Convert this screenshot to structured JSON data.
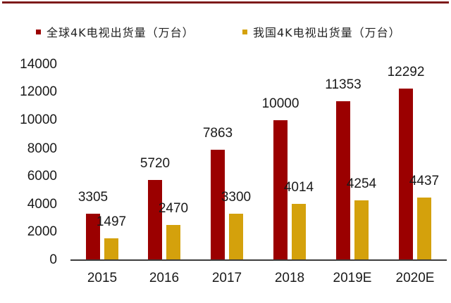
{
  "chart_data": {
    "type": "bar",
    "title": "",
    "xlabel": "",
    "ylabel": "",
    "categories": [
      "2015",
      "2016",
      "2017",
      "2018",
      "2019E",
      "2020E"
    ],
    "series": [
      {
        "name": "全球4K电视出货量（万台）",
        "color": "#9b0000",
        "values": [
          3305,
          5720,
          7863,
          10000,
          11353,
          12292
        ]
      },
      {
        "name": "我国4K电视出货量（万台）",
        "color": "#d4a10c",
        "values": [
          1497,
          2470,
          3300,
          4014,
          4254,
          4437
        ]
      }
    ],
    "yticks": [
      "0",
      "2000",
      "4000",
      "6000",
      "8000",
      "10000",
      "12000",
      "14000"
    ],
    "ylim": [
      0,
      14000
    ],
    "grid": false,
    "legend_position": "top",
    "data_labels": true
  },
  "legend": {
    "items": [
      {
        "label": "全球4K电视出货量（万台）",
        "color": "#9b0000"
      },
      {
        "label": "我国4K电视出货量（万台）",
        "color": "#d4a10c"
      }
    ]
  },
  "labels": {
    "global": [
      "3305",
      "5720",
      "7863",
      "10000",
      "11353",
      "12292"
    ],
    "china": [
      "1497",
      "2470",
      "3300",
      "4014",
      "4254",
      "4437"
    ],
    "x": [
      "2015",
      "2016",
      "2017",
      "2018",
      "2019E",
      "2020E"
    ],
    "y": [
      "0",
      "2000",
      "4000",
      "6000",
      "8000",
      "10000",
      "12000",
      "14000"
    ]
  },
  "colors": {
    "rule": "#7d1a1a",
    "global": "#9b0000",
    "china": "#d4a10c",
    "axis": "#3c3c3c"
  }
}
